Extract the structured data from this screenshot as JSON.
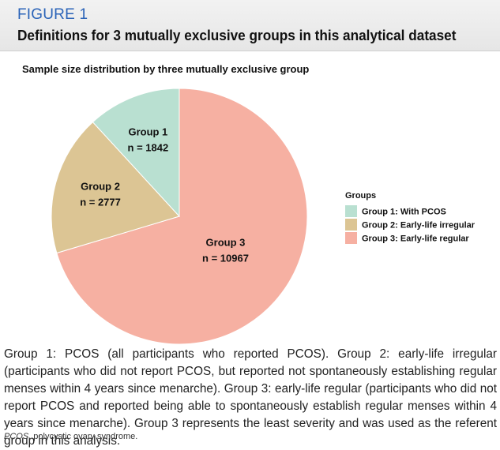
{
  "figure": {
    "label": "FIGURE 1",
    "title": "Definitions for 3 mutually exclusive groups in this analytical dataset"
  },
  "chart_data": {
    "type": "pie",
    "title": "Sample size distribution by three mutually exclusive group",
    "legend_title": "Groups",
    "legend_position": "right",
    "slices": [
      {
        "label": "Group 1",
        "value_label": "n = 1842",
        "value": 1842,
        "legend": "Group 1: With PCOS",
        "color": "#b9e0d1"
      },
      {
        "label": "Group 2",
        "value_label": "n = 2777",
        "value": 2777,
        "legend": "Group 2: Early-life irregular",
        "color": "#dcc594"
      },
      {
        "label": "Group 3",
        "value_label": "n = 10967",
        "value": 10967,
        "legend": "Group 3: Early-life regular",
        "color": "#f6b0a2"
      }
    ]
  },
  "caption": "Group 1: PCOS (all participants who reported PCOS). Group 2: early-life irregular (participants who did not report PCOS, but reported not spontaneously establishing regular menses within 4 years since menarche). Group 3: early-life regular (participants who did not report PCOS and reported being able to spontaneously establish regular menses within 4 years since menarche). Group 3 represents the least severity and was used as the referent group in this analysis.",
  "footnote": {
    "abbr": "PCOS",
    "text": ", polycystic ovary syndrome."
  }
}
